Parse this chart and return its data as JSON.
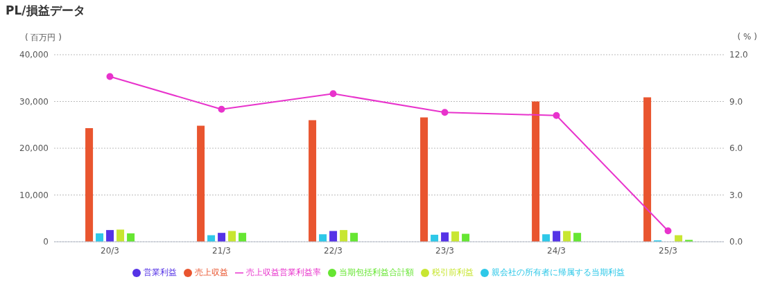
{
  "chart_data": {
    "type": "bar",
    "title": "PL/損益データ",
    "ylabel": "( 百万円 )",
    "y2label": "( % )",
    "categories": [
      "20/3",
      "21/3",
      "22/3",
      "23/3",
      "24/3",
      "25/3"
    ],
    "series": [
      {
        "name": "売上収益",
        "color": "#e9552f",
        "values": [
          24300,
          24800,
          26000,
          26600,
          30000,
          30900
        ]
      },
      {
        "name": "親会社の所有者に帰属する当期利益",
        "color": "#2ec8e8",
        "values": [
          1800,
          1400,
          1600,
          1500,
          1600,
          300
        ]
      },
      {
        "name": "営業利益",
        "color": "#5533e6",
        "values": [
          2500,
          1900,
          2300,
          2000,
          2300,
          0
        ]
      },
      {
        "name": "税引前利益",
        "color": "#c8e632",
        "values": [
          2600,
          2300,
          2500,
          2200,
          2300,
          1400
        ]
      },
      {
        "name": "当期包括利益合計額",
        "color": "#66e632",
        "values": [
          1800,
          1900,
          1900,
          1700,
          1900,
          400
        ]
      },
      {
        "name": "売上収益営業利益率",
        "type": "line",
        "axis": "y2",
        "color": "#e833cc",
        "marker": "circle",
        "values": [
          10.6,
          8.5,
          9.5,
          8.3,
          8.1,
          0.7
        ]
      }
    ],
    "ylim": [
      0,
      40000
    ],
    "yticks": [
      0,
      {
        "value": 10000,
        "label": "10,000"
      },
      {
        "value": 20000,
        "label": "20,000"
      },
      {
        "value": 30000,
        "label": "30,000"
      },
      {
        "value": 40000,
        "label": "40,000"
      }
    ],
    "y2lim": [
      0,
      12
    ],
    "y2ticks": [
      {
        "value": 0,
        "label": "0.0"
      },
      {
        "value": 3,
        "label": "3.0"
      },
      {
        "value": 6,
        "label": "6.0"
      },
      {
        "value": 9,
        "label": "9.0"
      },
      {
        "value": 12,
        "label": "12.0"
      }
    ],
    "grid": "y",
    "legend": "bottom"
  }
}
